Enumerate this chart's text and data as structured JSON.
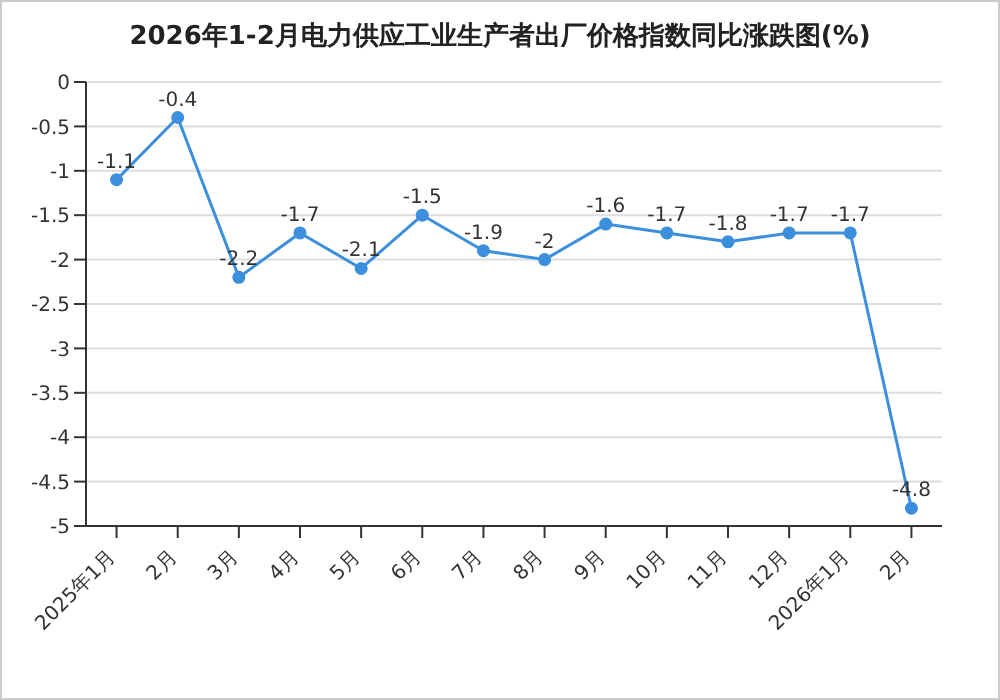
{
  "chart_data": {
    "type": "line",
    "title": "2026年1-2月电力供应工业生产者出厂价格指数同比涨跌图(%)",
    "categories": [
      "2025年1月",
      "2月",
      "3月",
      "4月",
      "5月",
      "6月",
      "7月",
      "8月",
      "9月",
      "10月",
      "11月",
      "12月",
      "2026年1月",
      "2月"
    ],
    "series": [
      {
        "color": "#3c8fdd",
        "values": [
          -1.1,
          -0.4,
          -2.2,
          -1.7,
          -2.1,
          -1.5,
          -1.9,
          -2,
          -1.6,
          -1.7,
          -1.8,
          -1.7,
          -1.7,
          -4.8
        ]
      }
    ],
    "ylim": [
      -5,
      0
    ],
    "yticks": [
      -5,
      -4.5,
      -4,
      -3.5,
      -3,
      -2.5,
      -2,
      -1.5,
      -1,
      -0.5,
      0
    ],
    "grid": "y",
    "marker": "circle",
    "data_labels": true
  }
}
